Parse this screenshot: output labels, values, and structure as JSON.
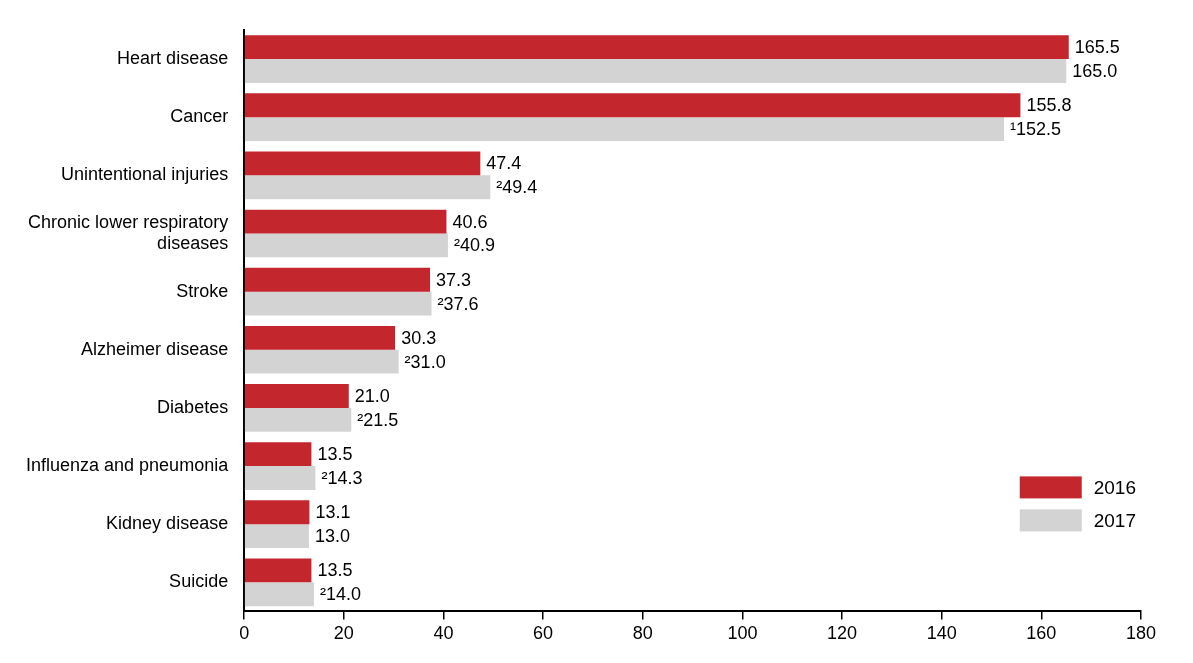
{
  "chart_data": {
    "type": "bar",
    "orientation": "horizontal",
    "categories": [
      "Heart disease",
      "Cancer",
      "Unintentional injuries",
      "Chronic lower respiratory diseases",
      "Stroke",
      "Alzheimer disease",
      "Diabetes",
      "Influenza and pneumonia",
      "Kidney disease",
      "Suicide"
    ],
    "series": [
      {
        "name": "2016",
        "color": "#c4262e",
        "values": [
          165.5,
          155.8,
          47.4,
          40.6,
          37.3,
          30.3,
          21.0,
          13.5,
          13.1,
          13.5
        ],
        "value_labels": [
          "165.5",
          "155.8",
          "47.4",
          "40.6",
          "37.3",
          "30.3",
          "21.0",
          "13.5",
          "13.1",
          "13.5"
        ]
      },
      {
        "name": "2017",
        "color": "#d3d3d3",
        "values": [
          165.0,
          152.5,
          49.4,
          40.9,
          37.6,
          31.0,
          21.5,
          14.3,
          13.0,
          14.0
        ],
        "value_labels": [
          "165.0",
          "¹152.5",
          "²49.4",
          "²40.9",
          "²37.6",
          "²31.0",
          "²21.5",
          "²14.3",
          "13.0",
          "²14.0"
        ]
      }
    ],
    "xlim": [
      0,
      180
    ],
    "xticks": [
      0,
      20,
      40,
      60,
      80,
      100,
      120,
      140,
      160,
      180
    ],
    "grid": false,
    "legend": "lower right",
    "data_labels": true
  }
}
